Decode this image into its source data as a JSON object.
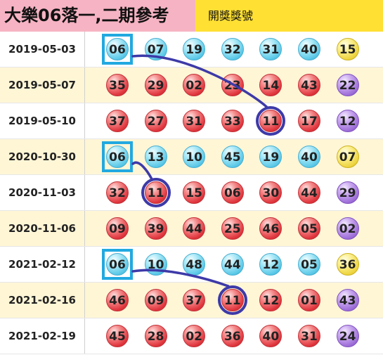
{
  "header": {
    "title": "大樂06落一,二期參考",
    "subtitle": "開獎獎號"
  },
  "rows": [
    {
      "date": "2019-05-03",
      "balls": [
        {
          "n": "06",
          "c": "blue"
        },
        {
          "n": "07",
          "c": "blue"
        },
        {
          "n": "19",
          "c": "blue"
        },
        {
          "n": "32",
          "c": "blue"
        },
        {
          "n": "31",
          "c": "blue"
        },
        {
          "n": "40",
          "c": "blue"
        },
        {
          "n": "15",
          "c": "yellow"
        }
      ]
    },
    {
      "date": "2019-05-07",
      "balls": [
        {
          "n": "35",
          "c": "red"
        },
        {
          "n": "29",
          "c": "red"
        },
        {
          "n": "02",
          "c": "red"
        },
        {
          "n": "23",
          "c": "red"
        },
        {
          "n": "14",
          "c": "red"
        },
        {
          "n": "43",
          "c": "red"
        },
        {
          "n": "22",
          "c": "purple"
        }
      ]
    },
    {
      "date": "2019-05-10",
      "balls": [
        {
          "n": "37",
          "c": "red"
        },
        {
          "n": "27",
          "c": "red"
        },
        {
          "n": "31",
          "c": "red"
        },
        {
          "n": "33",
          "c": "red"
        },
        {
          "n": "11",
          "c": "red"
        },
        {
          "n": "17",
          "c": "red"
        },
        {
          "n": "12",
          "c": "purple"
        }
      ]
    },
    {
      "date": "2020-10-30",
      "balls": [
        {
          "n": "06",
          "c": "blue"
        },
        {
          "n": "13",
          "c": "blue"
        },
        {
          "n": "10",
          "c": "blue"
        },
        {
          "n": "45",
          "c": "blue"
        },
        {
          "n": "19",
          "c": "blue"
        },
        {
          "n": "40",
          "c": "blue"
        },
        {
          "n": "07",
          "c": "yellow"
        }
      ]
    },
    {
      "date": "2020-11-03",
      "balls": [
        {
          "n": "32",
          "c": "red"
        },
        {
          "n": "11",
          "c": "red"
        },
        {
          "n": "15",
          "c": "red"
        },
        {
          "n": "06",
          "c": "red"
        },
        {
          "n": "30",
          "c": "red"
        },
        {
          "n": "44",
          "c": "red"
        },
        {
          "n": "29",
          "c": "purple"
        }
      ]
    },
    {
      "date": "2020-11-06",
      "balls": [
        {
          "n": "09",
          "c": "red"
        },
        {
          "n": "39",
          "c": "red"
        },
        {
          "n": "44",
          "c": "red"
        },
        {
          "n": "25",
          "c": "red"
        },
        {
          "n": "46",
          "c": "red"
        },
        {
          "n": "05",
          "c": "red"
        },
        {
          "n": "02",
          "c": "purple"
        }
      ]
    },
    {
      "date": "2021-02-12",
      "balls": [
        {
          "n": "06",
          "c": "blue"
        },
        {
          "n": "10",
          "c": "blue"
        },
        {
          "n": "48",
          "c": "blue"
        },
        {
          "n": "44",
          "c": "blue"
        },
        {
          "n": "12",
          "c": "blue"
        },
        {
          "n": "05",
          "c": "blue"
        },
        {
          "n": "36",
          "c": "yellow"
        }
      ]
    },
    {
      "date": "2021-02-16",
      "balls": [
        {
          "n": "46",
          "c": "red"
        },
        {
          "n": "09",
          "c": "red"
        },
        {
          "n": "37",
          "c": "red"
        },
        {
          "n": "11",
          "c": "red"
        },
        {
          "n": "12",
          "c": "red"
        },
        {
          "n": "01",
          "c": "red"
        },
        {
          "n": "43",
          "c": "purple"
        }
      ]
    },
    {
      "date": "2021-02-19",
      "balls": [
        {
          "n": "45",
          "c": "red"
        },
        {
          "n": "28",
          "c": "red"
        },
        {
          "n": "02",
          "c": "red"
        },
        {
          "n": "36",
          "c": "red"
        },
        {
          "n": "40",
          "c": "red"
        },
        {
          "n": "31",
          "c": "red"
        },
        {
          "n": "24",
          "c": "purple"
        }
      ]
    }
  ],
  "square_highlights": [
    {
      "row": 0,
      "col": 0
    },
    {
      "row": 3,
      "col": 0
    },
    {
      "row": 6,
      "col": 0
    }
  ],
  "circle_highlights": [
    {
      "row": 2,
      "col": 4
    },
    {
      "row": 4,
      "col": 1
    },
    {
      "row": 7,
      "col": 3
    }
  ],
  "connections": [
    {
      "from": {
        "row": 0,
        "col": 0
      },
      "to": {
        "row": 2,
        "col": 4
      }
    },
    {
      "from": {
        "row": 3,
        "col": 0
      },
      "to": {
        "row": 4,
        "col": 1
      }
    },
    {
      "from": {
        "row": 6,
        "col": 0
      },
      "to": {
        "row": 7,
        "col": 3
      }
    }
  ],
  "colors": {
    "header_bg": "#ffe033",
    "title_bg": "#f6b3c3",
    "row_alt_bg": "#fff6d6",
    "square_border": "#22a9e0",
    "circle_border": "#3d3aa8",
    "connector": "#3d3aa8"
  }
}
